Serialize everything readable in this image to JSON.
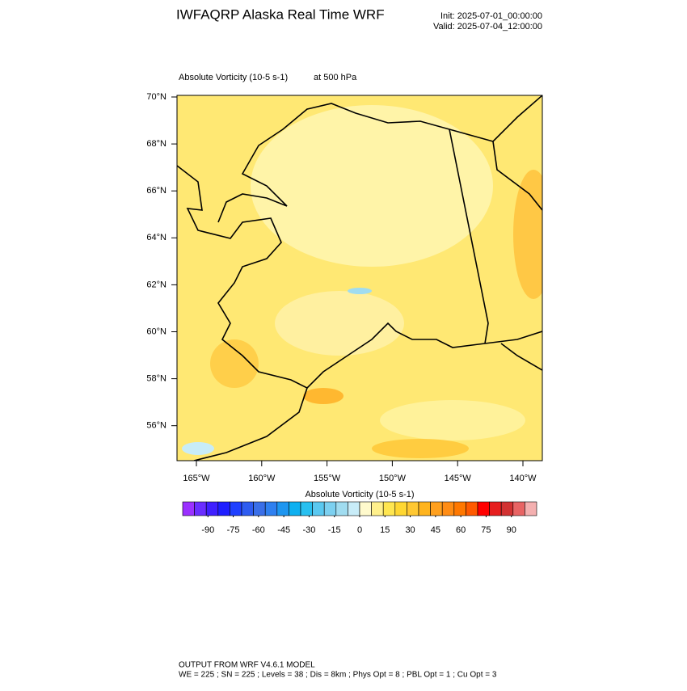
{
  "header": {
    "title": "IWFAQRP Alaska Real Time WRF",
    "init": "Init: 2025-07-01_00:00:00",
    "valid": "Valid: 2025-07-04_12:00:00"
  },
  "map": {
    "field": "Absolute Vorticity   (10-5 s-1)",
    "level": "at   500 hPa",
    "lat_labels": [
      "70°N",
      "68°N",
      "66°N",
      "64°N",
      "62°N",
      "60°N",
      "58°N",
      "56°N"
    ],
    "lon_labels": [
      "165°W",
      "160°W",
      "155°W",
      "150°W",
      "145°W",
      "140°W"
    ]
  },
  "colorbar": {
    "title": "Absolute Vorticity  (10-5 s-1)",
    "lim": [
      -105,
      105
    ],
    "ticks": [
      -90,
      -75,
      -60,
      -45,
      -30,
      -15,
      0,
      15,
      30,
      45,
      60,
      75,
      90
    ],
    "colors": [
      "#9b30ff",
      "#6a2dff",
      "#3f1fff",
      "#1e1eff",
      "#2040ff",
      "#2e5cf0",
      "#3a6fe8",
      "#2f80f0",
      "#1e96f0",
      "#0fb0f0",
      "#28c0f0",
      "#5ac8f0",
      "#7cd0f0",
      "#a0dcf0",
      "#c8ecf8",
      "#fffacd",
      "#fff08c",
      "#ffe650",
      "#ffd732",
      "#ffc832",
      "#ffb41e",
      "#ffa01e",
      "#ff8c14",
      "#ff7800",
      "#ff5a00",
      "#ff0000",
      "#e61e1e",
      "#d23232",
      "#e86464",
      "#f4b0b0"
    ]
  },
  "footer": {
    "line1": "OUTPUT FROM WRF V4.6.1 MODEL",
    "line2": "WE = 225 ; SN = 225 ; Levels = 38 ; Dis = 8km ; Phys Opt = 8 ; PBL Opt = 1 ; Cu Opt = 3"
  }
}
